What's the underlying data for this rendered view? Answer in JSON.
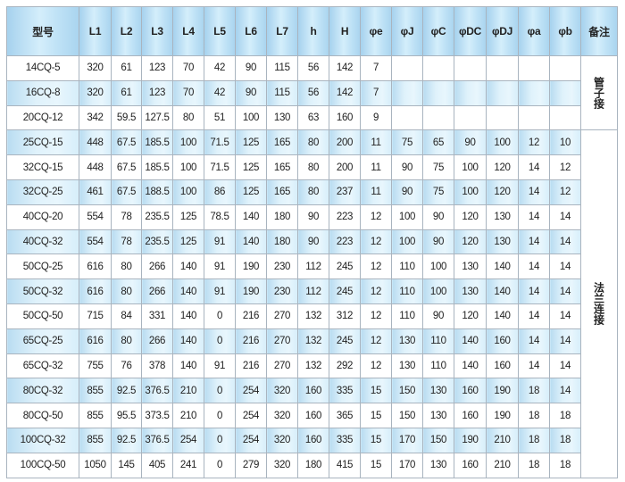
{
  "table": {
    "headers": [
      "型号",
      "L1",
      "L2",
      "L3",
      "L4",
      "L5",
      "L6",
      "L7",
      "h",
      "H",
      "φe",
      "φJ",
      "φC",
      "φDC",
      "φDJ",
      "φa",
      "φb",
      "备注"
    ],
    "rows": [
      [
        "14CQ-5",
        "320",
        "61",
        "123",
        "70",
        "42",
        "90",
        "115",
        "56",
        "142",
        "7",
        "",
        "",
        "",
        "",
        "",
        ""
      ],
      [
        "16CQ-8",
        "320",
        "61",
        "123",
        "70",
        "42",
        "90",
        "115",
        "56",
        "142",
        "7",
        "",
        "",
        "",
        "",
        "",
        ""
      ],
      [
        "20CQ-12",
        "342",
        "59.5",
        "127.5",
        "80",
        "51",
        "100",
        "130",
        "63",
        "160",
        "9",
        "",
        "",
        "",
        "",
        "",
        ""
      ],
      [
        "25CQ-15",
        "448",
        "67.5",
        "185.5",
        "100",
        "71.5",
        "125",
        "165",
        "80",
        "200",
        "11",
        "75",
        "65",
        "90",
        "100",
        "12",
        "10"
      ],
      [
        "32CQ-15",
        "448",
        "67.5",
        "185.5",
        "100",
        "71.5",
        "125",
        "165",
        "80",
        "200",
        "11",
        "90",
        "75",
        "100",
        "120",
        "14",
        "12"
      ],
      [
        "32CQ-25",
        "461",
        "67.5",
        "188.5",
        "100",
        "86",
        "125",
        "165",
        "80",
        "237",
        "11",
        "90",
        "75",
        "100",
        "120",
        "14",
        "12"
      ],
      [
        "40CQ-20",
        "554",
        "78",
        "235.5",
        "125",
        "78.5",
        "140",
        "180",
        "90",
        "223",
        "12",
        "100",
        "90",
        "120",
        "130",
        "14",
        "14"
      ],
      [
        "40CQ-32",
        "554",
        "78",
        "235.5",
        "125",
        "91",
        "140",
        "180",
        "90",
        "223",
        "12",
        "100",
        "90",
        "120",
        "130",
        "14",
        "14"
      ],
      [
        "50CQ-25",
        "616",
        "80",
        "266",
        "140",
        "91",
        "190",
        "230",
        "112",
        "245",
        "12",
        "110",
        "100",
        "130",
        "140",
        "14",
        "14"
      ],
      [
        "50CQ-32",
        "616",
        "80",
        "266",
        "140",
        "91",
        "190",
        "230",
        "112",
        "245",
        "12",
        "110",
        "100",
        "130",
        "140",
        "14",
        "14"
      ],
      [
        "50CQ-50",
        "715",
        "84",
        "331",
        "140",
        "0",
        "216",
        "270",
        "132",
        "312",
        "12",
        "110",
        "90",
        "120",
        "140",
        "14",
        "14"
      ],
      [
        "65CQ-25",
        "616",
        "80",
        "266",
        "140",
        "0",
        "216",
        "270",
        "132",
        "245",
        "12",
        "130",
        "110",
        "140",
        "160",
        "14",
        "14"
      ],
      [
        "65CQ-32",
        "755",
        "76",
        "378",
        "140",
        "91",
        "216",
        "270",
        "132",
        "292",
        "12",
        "130",
        "110",
        "140",
        "160",
        "14",
        "14"
      ],
      [
        "80CQ-32",
        "855",
        "92.5",
        "376.5",
        "210",
        "0",
        "254",
        "320",
        "160",
        "335",
        "15",
        "150",
        "130",
        "160",
        "190",
        "18",
        "14"
      ],
      [
        "80CQ-50",
        "855",
        "95.5",
        "373.5",
        "210",
        "0",
        "254",
        "320",
        "160",
        "365",
        "15",
        "150",
        "130",
        "160",
        "190",
        "18",
        "18"
      ],
      [
        "100CQ-32",
        "855",
        "92.5",
        "376.5",
        "254",
        "0",
        "254",
        "320",
        "160",
        "335",
        "15",
        "170",
        "150",
        "190",
        "210",
        "18",
        "18"
      ],
      [
        "100CQ-50",
        "1050",
        "145",
        "405",
        "241",
        "0",
        "279",
        "320",
        "180",
        "415",
        "15",
        "170",
        "130",
        "160",
        "210",
        "18",
        "18"
      ]
    ],
    "remarks": [
      {
        "text": "管子接",
        "span": 3
      },
      {
        "text": "法兰连接",
        "span": 14
      }
    ],
    "colors": {
      "header": "#a7d2ee",
      "alt_row": "#dff2fb",
      "border": "#a9b4bf"
    }
  }
}
